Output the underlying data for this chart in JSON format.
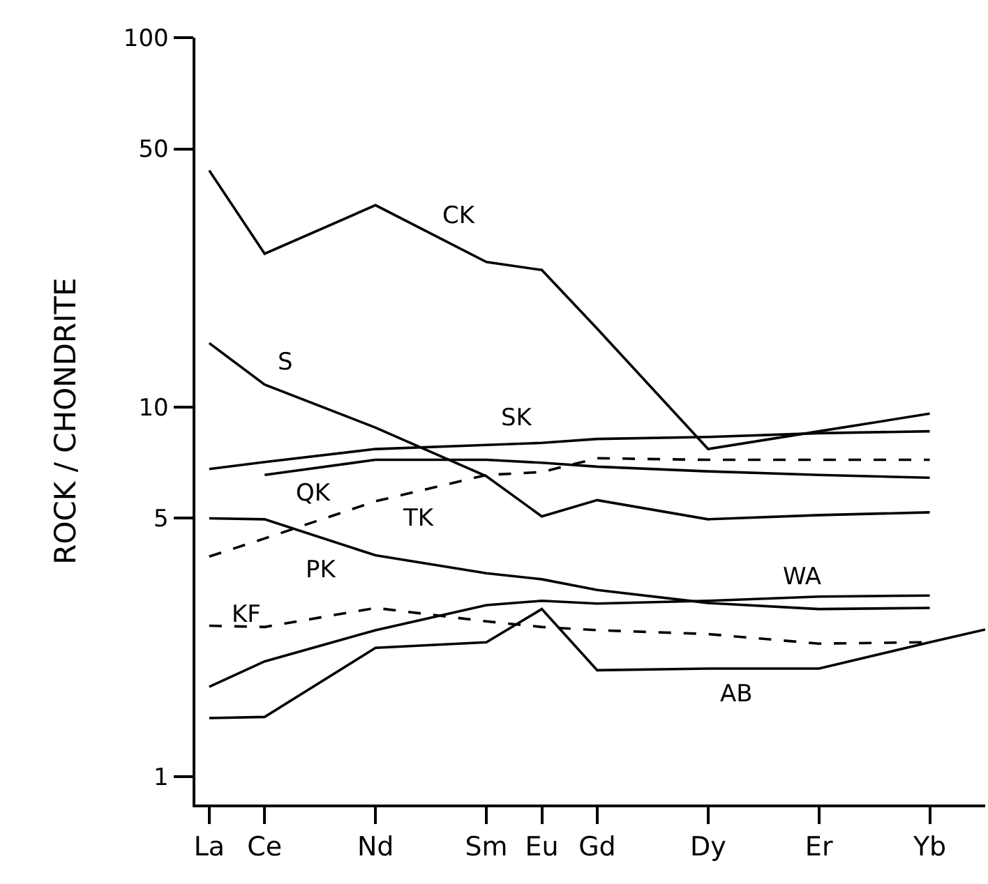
{
  "chart_data": {
    "type": "line",
    "ylabel": "ROCK / CHONDRITE",
    "log": "y",
    "grid": false,
    "legend": false,
    "marker": "none",
    "categories": [
      "La",
      "Ce",
      null,
      "Nd",
      null,
      "Sm",
      "Eu",
      "Gd",
      null,
      "Dy",
      null,
      "Er",
      null,
      "Yb",
      null
    ],
    "ylim": [
      0.84,
      100
    ],
    "yticks": [
      1,
      5,
      10,
      50,
      100
    ],
    "series": [
      {
        "name": "CK",
        "color": "#000000",
        "line_style": "solid",
        "values": [
          43.7,
          26,
          null,
          35.2,
          null,
          24.7,
          23.5,
          16.3,
          null,
          7.7,
          null,
          8.6,
          null,
          9.6,
          null
        ]
      },
      {
        "name": "S",
        "color": "#000000",
        "line_style": "solid",
        "values": [
          14.9,
          11.5,
          null,
          8.8,
          null,
          6.5,
          5.06,
          5.6,
          null,
          4.97,
          null,
          5.1,
          null,
          5.19,
          null
        ]
      },
      {
        "name": "SK",
        "color": "#000000",
        "line_style": "solid",
        "values": [
          6.8,
          7.1,
          null,
          7.7,
          null,
          7.9,
          8.0,
          8.2,
          null,
          8.3,
          null,
          8.5,
          null,
          8.6,
          null
        ]
      },
      {
        "name": "QK",
        "color": "#000000",
        "line_style": "solid",
        "values": [
          null,
          6.55,
          null,
          7.2,
          null,
          7.2,
          7.07,
          6.9,
          null,
          6.7,
          null,
          6.55,
          null,
          6.44,
          null
        ]
      },
      {
        "name": "TK",
        "color": "#000000",
        "line_style": "dashed",
        "values": [
          3.94,
          4.41,
          null,
          5.56,
          null,
          6.55,
          6.67,
          7.27,
          null,
          7.2,
          null,
          7.2,
          null,
          7.2,
          null
        ]
      },
      {
        "name": "PK",
        "color": "#000000",
        "line_style": "solid",
        "values": [
          5.0,
          4.97,
          null,
          3.97,
          null,
          3.55,
          3.42,
          3.2,
          null,
          2.95,
          null,
          2.84,
          null,
          2.86,
          null
        ]
      },
      {
        "name": "WA",
        "color": "#000000",
        "line_style": "solid",
        "values": [
          1.75,
          2.05,
          null,
          2.49,
          null,
          2.91,
          2.99,
          2.94,
          null,
          2.99,
          null,
          3.07,
          null,
          3.09,
          null
        ]
      },
      {
        "name": "KF",
        "color": "#000000",
        "line_style": "dashed",
        "values": [
          2.56,
          2.54,
          null,
          2.86,
          null,
          2.63,
          2.54,
          2.49,
          null,
          2.43,
          null,
          2.29,
          null,
          2.31,
          null
        ]
      },
      {
        "name": "AB",
        "color": "#000000",
        "line_style": "solid",
        "values": [
          1.44,
          1.45,
          null,
          2.23,
          null,
          2.31,
          2.84,
          1.94,
          null,
          1.96,
          null,
          1.96,
          null,
          2.31,
          2.5
        ]
      }
    ]
  }
}
